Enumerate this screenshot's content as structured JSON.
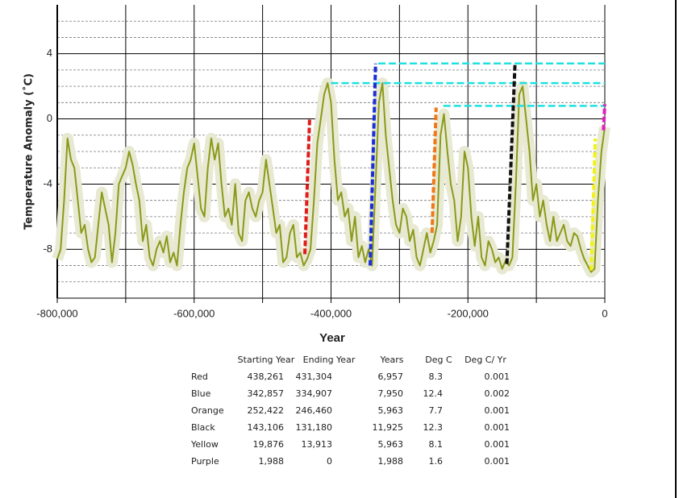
{
  "chart_data": {
    "type": "line",
    "xlabel": "Year",
    "ylabel": "Temperature Anomaly (˚C)",
    "xlim": [
      -800000,
      0
    ],
    "ylim": [
      -11,
      7
    ],
    "xticks": [
      {
        "value": -800000,
        "label": "-800,000"
      },
      {
        "value": -600000,
        "label": "-600,000"
      },
      {
        "value": -400000,
        "label": "-400,000"
      },
      {
        "value": -200000,
        "label": "-200,000"
      },
      0
    ],
    "x_minor_ticks": [
      -700000,
      -500000,
      -300000,
      -100000
    ],
    "yticks": [
      -8,
      -4,
      0,
      4
    ],
    "y_minor_ticks": [
      -10,
      -9,
      -7,
      -6,
      -5,
      -3,
      -2,
      -1,
      1,
      2,
      3,
      5,
      6
    ],
    "grid": true,
    "series": [
      {
        "color": "#8a9a1a",
        "band_color": "#e8e9d2",
        "x": [
          -800000,
          -795000,
          -790000,
          -785000,
          -780000,
          -775000,
          -770000,
          -765000,
          -760000,
          -755000,
          -750000,
          -745000,
          -740000,
          -735000,
          -730000,
          -725000,
          -720000,
          -715000,
          -710000,
          -705000,
          -700000,
          -695000,
          -690000,
          -685000,
          -680000,
          -675000,
          -670000,
          -665000,
          -660000,
          -655000,
          -650000,
          -645000,
          -640000,
          -635000,
          -630000,
          -625000,
          -620000,
          -615000,
          -610000,
          -605000,
          -600000,
          -595000,
          -590000,
          -585000,
          -580000,
          -575000,
          -570000,
          -565000,
          -560000,
          -555000,
          -550000,
          -545000,
          -540000,
          -535000,
          -530000,
          -525000,
          -520000,
          -515000,
          -510000,
          -505000,
          -500000,
          -495000,
          -490000,
          -485000,
          -480000,
          -475000,
          -470000,
          -465000,
          -460000,
          -455000,
          -450000,
          -445000,
          -440000,
          -435000,
          -430000,
          -425000,
          -420000,
          -415000,
          -410000,
          -405000,
          -400000,
          -395000,
          -390000,
          -385000,
          -380000,
          -375000,
          -370000,
          -365000,
          -360000,
          -355000,
          -350000,
          -345000,
          -340000,
          -335000,
          -330000,
          -325000,
          -320000,
          -315000,
          -310000,
          -305000,
          -300000,
          -295000,
          -290000,
          -285000,
          -280000,
          -275000,
          -270000,
          -265000,
          -260000,
          -255000,
          -250000,
          -245000,
          -240000,
          -235000,
          -230000,
          -225000,
          -220000,
          -215000,
          -210000,
          -205000,
          -200000,
          -195000,
          -190000,
          -185000,
          -180000,
          -175000,
          -170000,
          -165000,
          -160000,
          -155000,
          -150000,
          -145000,
          -140000,
          -135000,
          -130000,
          -125000,
          -120000,
          -115000,
          -110000,
          -105000,
          -100000,
          -95000,
          -90000,
          -85000,
          -80000,
          -75000,
          -70000,
          -65000,
          -60000,
          -55000,
          -50000,
          -45000,
          -40000,
          -35000,
          -30000,
          -25000,
          -20000,
          -15000,
          -10000,
          -5000,
          0
        ],
        "values": [
          -8.6,
          -8,
          -5,
          -1.2,
          -2.5,
          -3,
          -5,
          -7,
          -6.5,
          -8,
          -8.8,
          -8.5,
          -6.5,
          -4.5,
          -5.5,
          -6.5,
          -8.8,
          -7,
          -4,
          -3.5,
          -3,
          -2,
          -2.8,
          -4,
          -5,
          -7.5,
          -6.5,
          -8.5,
          -9,
          -8,
          -7.5,
          -8.2,
          -7.2,
          -8.8,
          -8.2,
          -9,
          -6.5,
          -4.5,
          -3,
          -2.5,
          -1.5,
          -3.5,
          -5.5,
          -6,
          -3,
          -1.2,
          -2.5,
          -1.5,
          -4,
          -6,
          -5.5,
          -6.5,
          -4,
          -7,
          -7.5,
          -5,
          -4.5,
          -5.5,
          -6,
          -5,
          -4.5,
          -2.5,
          -4,
          -5.5,
          -7,
          -6.5,
          -8.8,
          -8.5,
          -7,
          -6.5,
          -8.5,
          -8.2,
          -9,
          -8.6,
          -8,
          -5,
          -1.5,
          0,
          1.5,
          2.2,
          1,
          -2.5,
          -5,
          -4.5,
          -6,
          -5.5,
          -7.5,
          -6,
          -8.5,
          -7.8,
          -8.8,
          -8,
          -9,
          -4,
          1,
          2.2,
          -1,
          -3,
          -5,
          -6.5,
          -7,
          -5.5,
          -6,
          -7.5,
          -6.8,
          -8.5,
          -9,
          -8,
          -7,
          -8.2,
          -7.5,
          -6.5,
          -1,
          0.3,
          -2,
          -4,
          -5,
          -7.5,
          -6,
          -2,
          -3,
          -6,
          -7.8,
          -6,
          -8.5,
          -9,
          -7.5,
          -8,
          -8.8,
          -8.5,
          -9.2,
          -8.7,
          -9,
          -8.5,
          -4,
          1.5,
          2,
          0,
          -2,
          -5,
          -4,
          -6,
          -5,
          -6.5,
          -7.5,
          -6,
          -7.5,
          -7,
          -6.5,
          -7.5,
          -7.8,
          -7,
          -7.2,
          -8,
          -8.6,
          -9,
          -9.4,
          -9.2,
          -5,
          -2,
          -0.5
        ]
      }
    ],
    "segments": [
      {
        "color": "#e01b1b",
        "x": [
          -438261,
          -431304
        ],
        "y": [
          -8.3,
          0
        ]
      },
      {
        "color": "#1a2fd6",
        "x": [
          -342857,
          -334907
        ],
        "y": [
          -9,
          3.4
        ]
      },
      {
        "color": "#f07818",
        "x": [
          -252422,
          -246460
        ],
        "y": [
          -7,
          0.7
        ]
      },
      {
        "color": "#111111",
        "x": [
          -143106,
          -131180
        ],
        "y": [
          -8.9,
          3.4
        ]
      },
      {
        "color": "#f2f21a",
        "x": [
          -19876,
          -13913
        ],
        "y": [
          -9.3,
          -1.2
        ]
      },
      {
        "color": "#e020c0",
        "x": [
          -1988,
          0
        ],
        "y": [
          -0.7,
          0.9
        ]
      }
    ],
    "reference_lines": [
      {
        "color": "#20e0e0",
        "y": 3.4,
        "x": [
          -331000,
          0
        ]
      },
      {
        "color": "#20e0e0",
        "y": 2.2,
        "x": [
          -400000,
          0
        ]
      },
      {
        "color": "#20e0e0",
        "y": 0.8,
        "x": [
          -236000,
          0
        ]
      }
    ]
  },
  "table": {
    "columns": [
      "Starting Year",
      "Ending Year",
      "Years",
      "Deg C",
      "Deg C/ Yr"
    ],
    "rows": [
      [
        "Red",
        "438,261",
        "431,304",
        "6,957",
        "8.3",
        "0.001"
      ],
      [
        "Blue",
        "342,857",
        "334,907",
        "7,950",
        "12.4",
        "0.002"
      ],
      [
        "Orange",
        "252,422",
        "246,460",
        "5,963",
        "7.7",
        "0.001"
      ],
      [
        "Black",
        "143,106",
        "131,180",
        "11,925",
        "12.3",
        "0.001"
      ],
      [
        "Yellow",
        "19,876",
        "13,913",
        "5,963",
        "8.1",
        "0.001"
      ],
      [
        "Purple",
        "1,988",
        "0",
        "1,988",
        "1.6",
        "0.001"
      ]
    ]
  }
}
